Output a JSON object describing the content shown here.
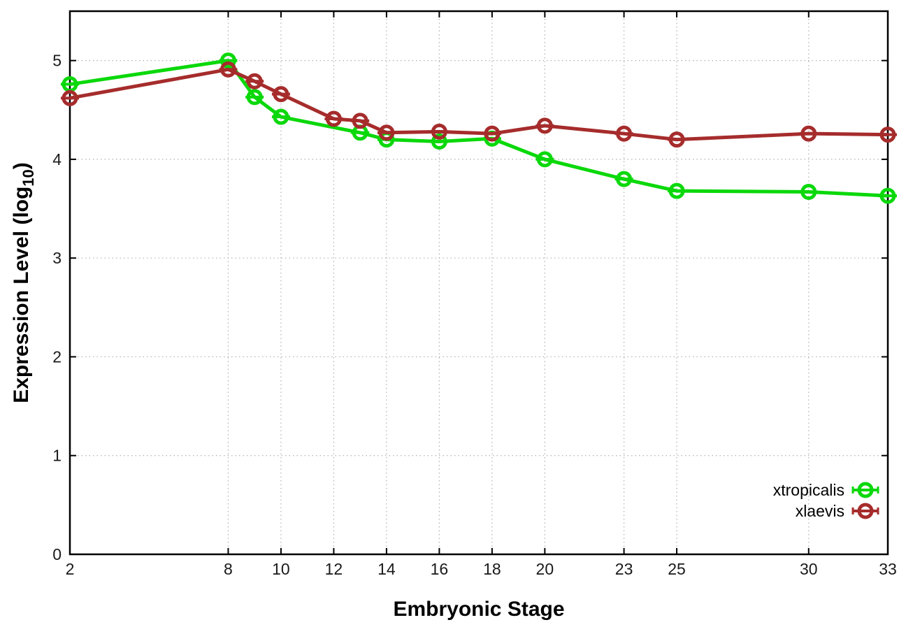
{
  "figure": {
    "background": "#ffffff"
  },
  "chart_data": {
    "type": "line",
    "title": "",
    "xlabel": "Embryonic Stage",
    "ylabel": "Expression Level (log10)",
    "ylabel_parts": {
      "pre": "Expression Level (log",
      "sub": "10",
      "post": ")"
    },
    "xlim": [
      2,
      33
    ],
    "ylim": [
      0,
      5.5
    ],
    "x_ticks": [
      2,
      8,
      10,
      12,
      14,
      16,
      18,
      20,
      23,
      25,
      30,
      33
    ],
    "y_ticks": [
      0,
      1,
      2,
      3,
      4,
      5
    ],
    "grid": true,
    "grid_style": "dotted",
    "legend_position": "inside-right",
    "marker": "open-circle-with-yerrorbar",
    "axis_color": "#000000",
    "grid_color": "#b0b0b0",
    "tick_label_color": "#1a1a1a",
    "series": [
      {
        "name": "xtropicalis",
        "color": "#0bd80b",
        "x": [
          2,
          8,
          9,
          10,
          13,
          14,
          16,
          18,
          20,
          23,
          25,
          30,
          33
        ],
        "y": [
          4.76,
          5.0,
          4.63,
          4.43,
          4.27,
          4.2,
          4.18,
          4.21,
          4.0,
          3.8,
          3.68,
          3.67,
          3.63
        ]
      },
      {
        "name": "xlaevis",
        "color": "#a62c2c",
        "x": [
          2,
          8,
          9,
          10,
          12,
          13,
          14,
          16,
          18,
          20,
          23,
          25,
          30,
          33
        ],
        "y": [
          4.62,
          4.91,
          4.79,
          4.66,
          4.41,
          4.39,
          4.27,
          4.28,
          4.26,
          4.34,
          4.26,
          4.2,
          4.26,
          4.25
        ]
      }
    ]
  }
}
